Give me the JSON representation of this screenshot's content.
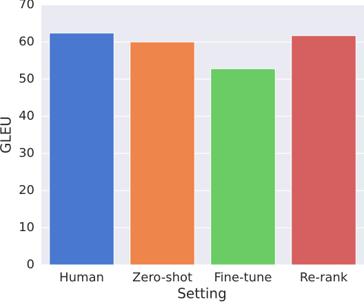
{
  "chart_data": {
    "type": "bar",
    "x_label": "Setting",
    "y_label": "GLEU",
    "categories": [
      "Human",
      "Zero-shot",
      "Fine-tune",
      "Re-rank"
    ],
    "values": [
      62.4,
      60.0,
      52.8,
      61.7
    ],
    "colors": [
      "#4878d0",
      "#ee854a",
      "#6acc64",
      "#d65f5f"
    ],
    "ylim": [
      0,
      70
    ],
    "yticks": [
      0,
      10,
      20,
      30,
      40,
      50,
      60,
      70
    ],
    "grid": true
  }
}
